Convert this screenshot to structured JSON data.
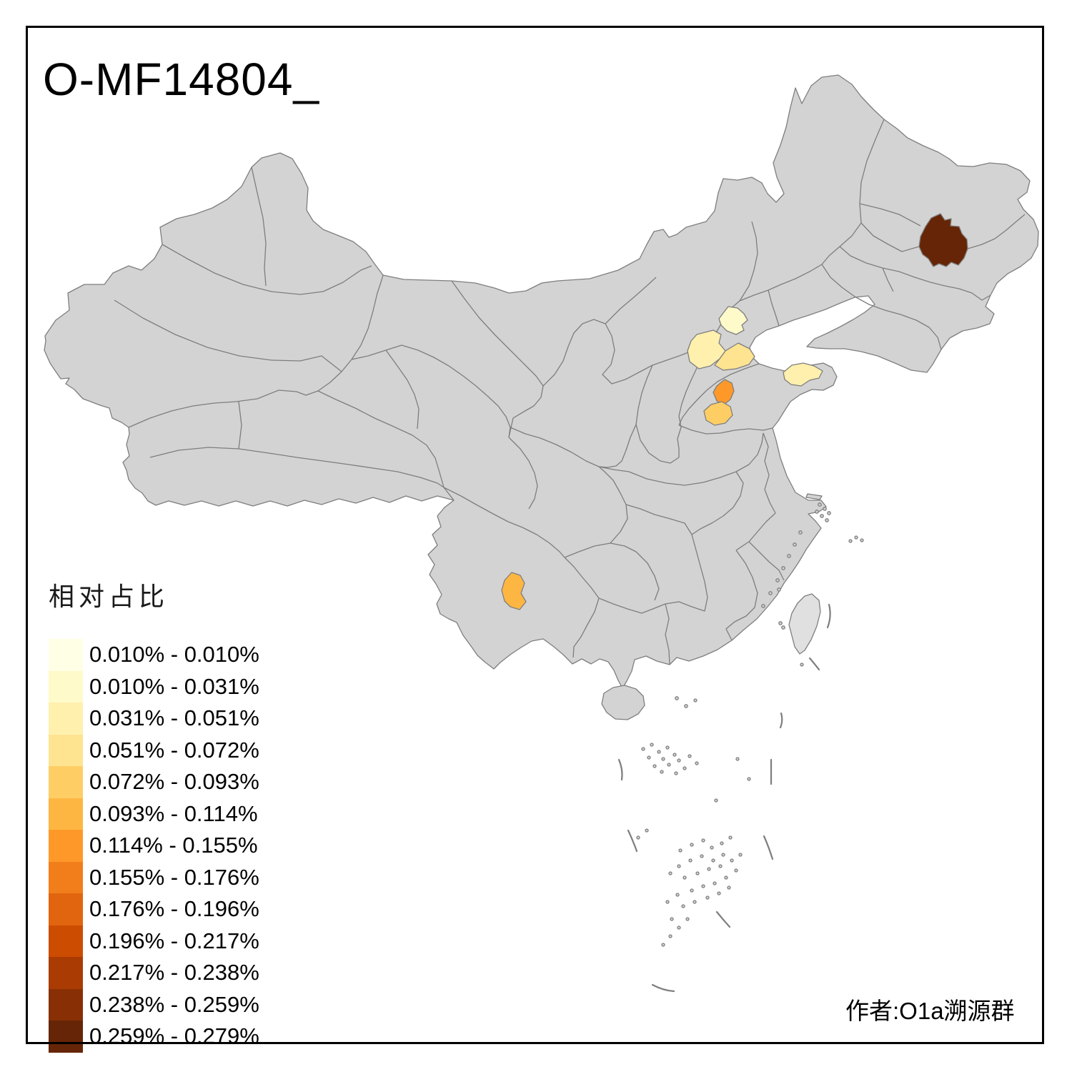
{
  "title": "O-MF14804_",
  "attribution": "作者:O1a溯源群",
  "legend": {
    "title": "相对占比",
    "classes": [
      {
        "range": "0.010% - 0.010%",
        "color": "#FFFFE5"
      },
      {
        "range": "0.010% - 0.031%",
        "color": "#FFFACA"
      },
      {
        "range": "0.031% - 0.051%",
        "color": "#FFF0AE"
      },
      {
        "range": "0.051% - 0.072%",
        "color": "#FEE391"
      },
      {
        "range": "0.072% - 0.093%",
        "color": "#FECE65"
      },
      {
        "range": "0.093% - 0.114%",
        "color": "#FEB642"
      },
      {
        "range": "0.114% - 0.155%",
        "color": "#FE9929"
      },
      {
        "range": "0.155% - 0.176%",
        "color": "#F27E1B"
      },
      {
        "range": "0.176% - 0.196%",
        "color": "#E1640E"
      },
      {
        "range": "0.196% - 0.217%",
        "color": "#CC4C02"
      },
      {
        "range": "0.217% - 0.238%",
        "color": "#AA3C03"
      },
      {
        "range": "0.238% - 0.259%",
        "color": "#882F05"
      },
      {
        "range": "0.259% - 0.279%",
        "color": "#662506"
      }
    ]
  },
  "map": {
    "base_fill": "#D3D3D3",
    "island_no_data_fill": "#E0E0E0",
    "border_color": "#7E7E7E",
    "sea_fill": "#FFFFFF",
    "regions": [
      {
        "id": "region-heilongjiang-east",
        "class_index": 12,
        "value_range": "0.259% - 0.279%"
      },
      {
        "id": "region-beijing",
        "class_index": 1,
        "value_range": "0.010% - 0.031%"
      },
      {
        "id": "region-baoding",
        "class_index": 2,
        "value_range": "0.031% - 0.051%"
      },
      {
        "id": "region-cangzhou",
        "class_index": 3,
        "value_range": "0.051% - 0.072%"
      },
      {
        "id": "region-yantai",
        "class_index": 2,
        "value_range": "0.031% - 0.051%"
      },
      {
        "id": "region-jinan",
        "class_index": 6,
        "value_range": "0.114% - 0.155%"
      },
      {
        "id": "region-jining",
        "class_index": 4,
        "value_range": "0.072% - 0.093%"
      },
      {
        "id": "region-yuxi",
        "class_index": 5,
        "value_range": "0.093% - 0.114%"
      }
    ]
  }
}
